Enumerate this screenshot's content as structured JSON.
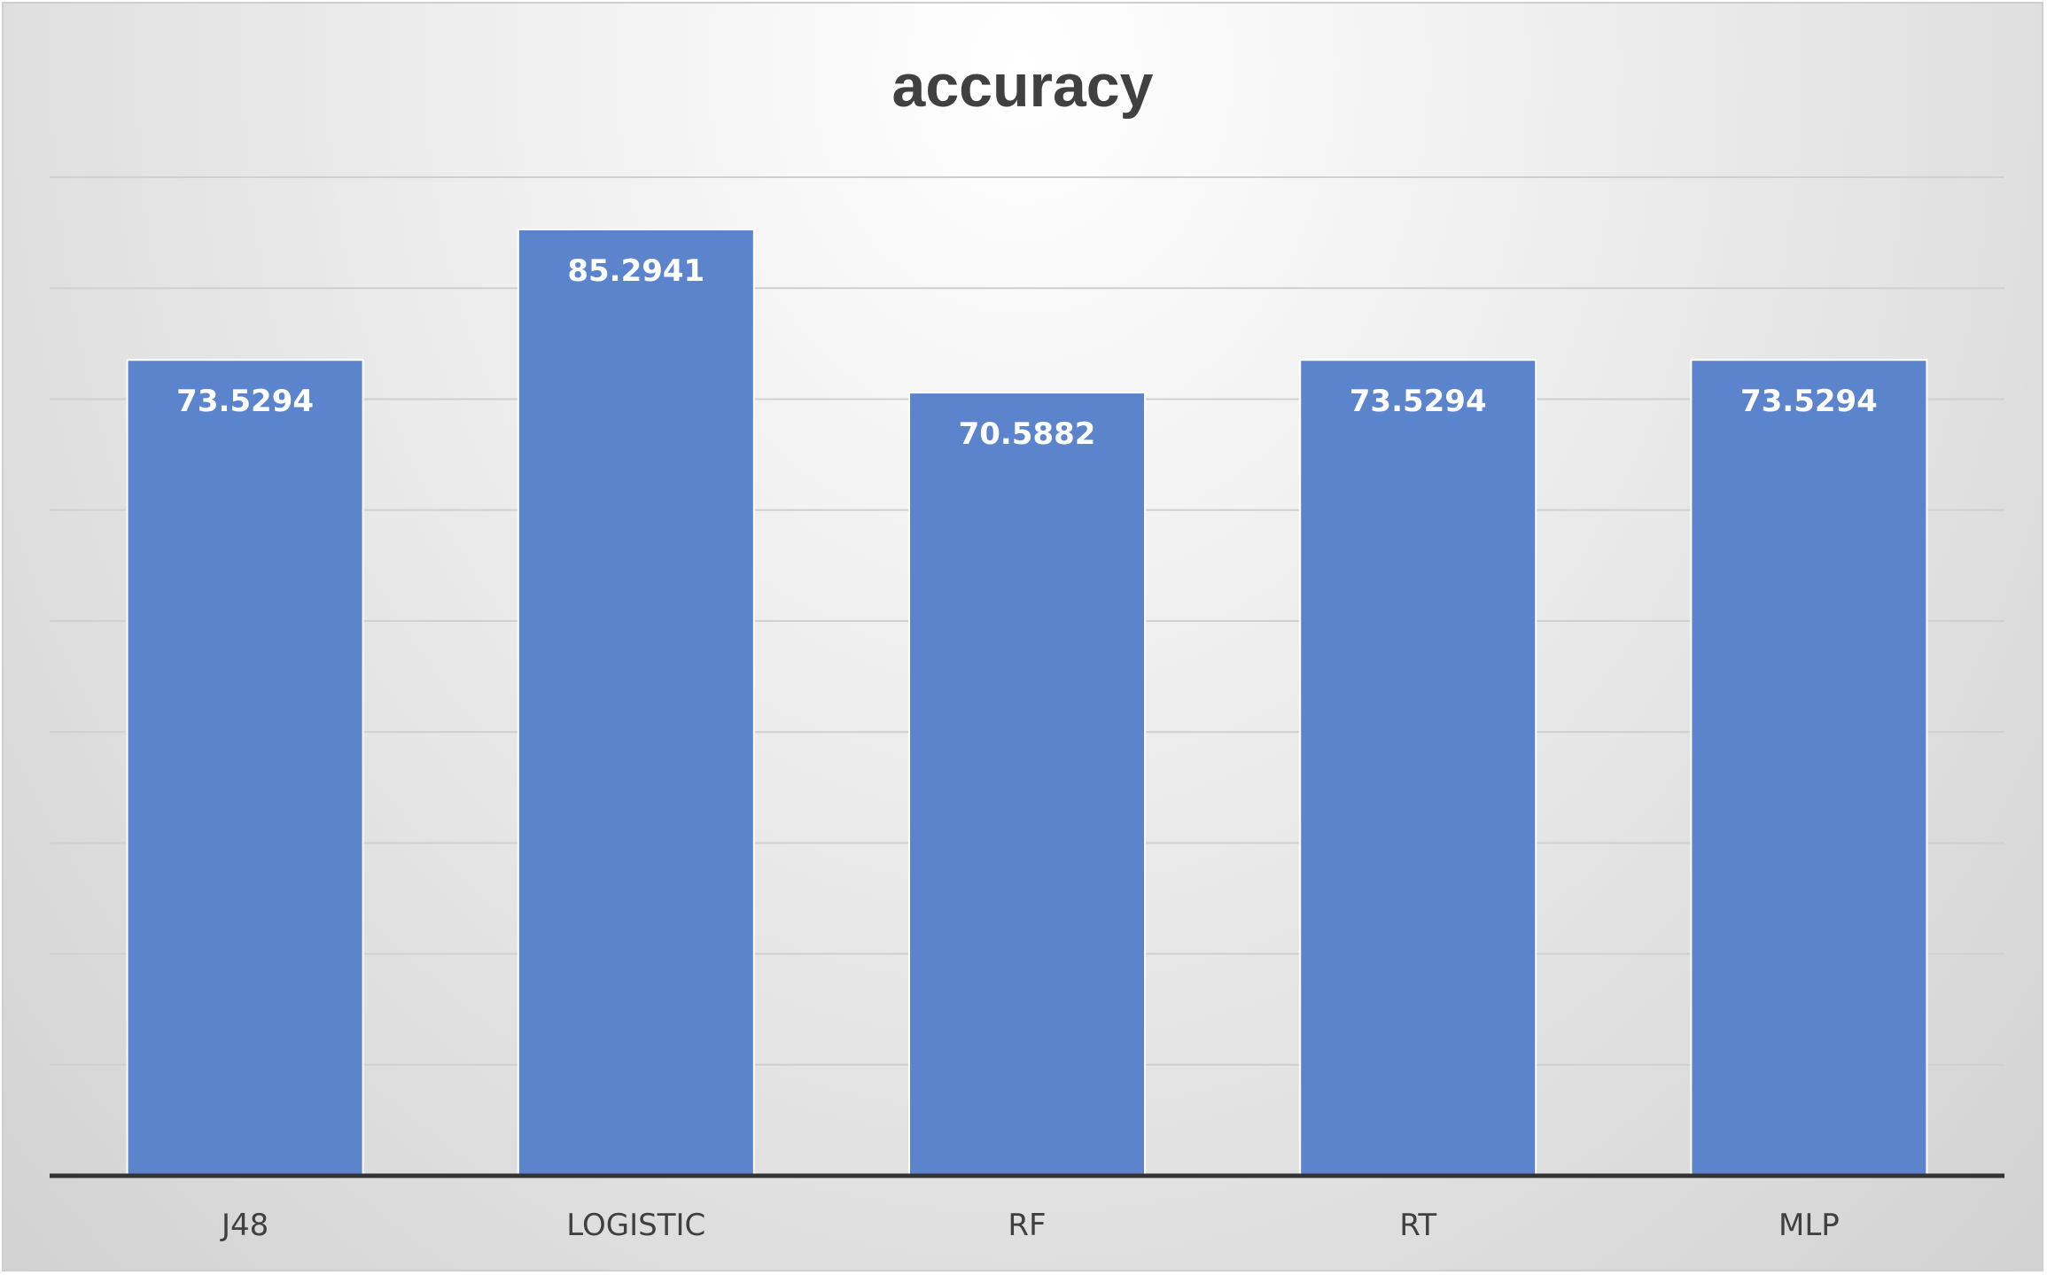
{
  "chart_data": {
    "type": "bar",
    "title": "accuracy",
    "xlabel": "",
    "ylabel": "",
    "categories": [
      "J48",
      "LOGISTIC",
      "RF",
      "RT",
      "MLP"
    ],
    "series": [
      {
        "values": [
          73.5294,
          85.2941,
          70.5882,
          73.5294,
          73.5294
        ]
      }
    ],
    "data_labels": [
      "73.5294",
      "85.2941",
      "70.5882",
      "73.5294",
      "73.5294"
    ],
    "ylim": [
      0,
      90
    ],
    "grid": true,
    "legend": "none",
    "colors": {
      "bar": "#5b84cd",
      "bar_edge": "#ffffff",
      "gridline": "#d0d0d0",
      "axis": "#333333"
    }
  }
}
